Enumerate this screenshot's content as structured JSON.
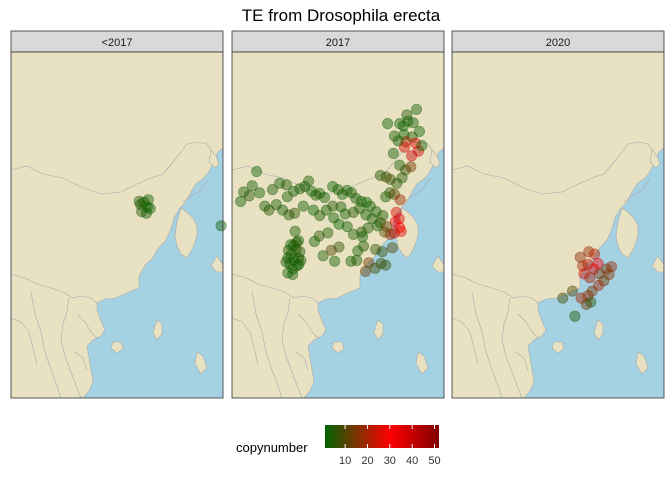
{
  "title": "TE from Drosophila erecta",
  "colors": {
    "ocean": "#a5d2e3",
    "land": "#e8e2c3",
    "border": "#a9a9a9",
    "strip_bg": "#d9d9d9",
    "panel_frame": "#333333",
    "scale": [
      "#006400",
      "#ff0000",
      "#800000"
    ]
  },
  "chart_data": {
    "type": "scatter",
    "facets": [
      "<2017",
      "2017",
      "2020"
    ],
    "xlim": [
      86,
      130
    ],
    "ylim": [
      10,
      54
    ],
    "color_scale": {
      "title": "copynumber",
      "breaks": [
        10,
        20,
        30,
        40,
        50
      ],
      "limits": [
        1,
        52
      ],
      "low": "#006400",
      "mid": "#ff0000",
      "high": "#800000",
      "midpoint": 30
    },
    "points": {
      "<2017": [
        [
          112.9,
          34.6,
          4
        ],
        [
          113.6,
          34.9,
          3
        ],
        [
          114.3,
          34.3,
          4
        ],
        [
          113.1,
          33.7,
          5
        ],
        [
          114.1,
          33.5,
          3
        ],
        [
          114.9,
          34.1,
          2
        ],
        [
          112.6,
          35.0,
          4
        ],
        [
          114.5,
          35.2,
          3
        ],
        [
          129.6,
          31.9,
          3
        ]
      ],
      "2017": [
        [
          118.3,
          44.9,
          2
        ],
        [
          122.3,
          46.0,
          5
        ],
        [
          124.3,
          46.7,
          3
        ],
        [
          123.6,
          45.0,
          3
        ],
        [
          121.7,
          43.5,
          2
        ],
        [
          123.4,
          43.2,
          5
        ],
        [
          122.1,
          42.6,
          20
        ],
        [
          124.1,
          42.4,
          34
        ],
        [
          124.7,
          41.4,
          38
        ],
        [
          123.3,
          40.8,
          40
        ],
        [
          121.8,
          41.9,
          26
        ],
        [
          119.5,
          41.1,
          3
        ],
        [
          120.5,
          42.7,
          3
        ],
        [
          119.7,
          43.3,
          4
        ],
        [
          120.8,
          44.9,
          3
        ],
        [
          121.6,
          44.6,
          2
        ],
        [
          122.5,
          45.2,
          3
        ],
        [
          124.9,
          43.9,
          2
        ],
        [
          125.4,
          42.1,
          3
        ],
        [
          123.1,
          39.4,
          15
        ],
        [
          122.0,
          39.0,
          8
        ],
        [
          120.8,
          39.6,
          4
        ],
        [
          121.3,
          38.0,
          5
        ],
        [
          120.2,
          37.3,
          5
        ],
        [
          118.9,
          37.8,
          7
        ],
        [
          118.0,
          38.1,
          8
        ],
        [
          116.8,
          38.3,
          5
        ],
        [
          118.8,
          36.1,
          6
        ],
        [
          117.9,
          35.6,
          4
        ],
        [
          119.7,
          35.9,
          10
        ],
        [
          120.9,
          35.2,
          18
        ],
        [
          120.1,
          33.6,
          26
        ],
        [
          120.7,
          32.8,
          36
        ],
        [
          119.9,
          32.4,
          33
        ],
        [
          120.8,
          31.7,
          30
        ],
        [
          121.1,
          31.2,
          34
        ],
        [
          119.7,
          31.0,
          24
        ],
        [
          118.9,
          30.8,
          20
        ],
        [
          117.7,
          31.1,
          11
        ],
        [
          116.8,
          32.3,
          6
        ],
        [
          117.3,
          33.2,
          5
        ],
        [
          115.9,
          33.7,
          3
        ],
        [
          114.7,
          34.4,
          3
        ],
        [
          113.9,
          34.9,
          2
        ],
        [
          112.8,
          35.0,
          3
        ],
        [
          111.7,
          35.4,
          3
        ],
        [
          110.8,
          36.1,
          4
        ],
        [
          109.9,
          36.4,
          3
        ],
        [
          108.9,
          35.9,
          3
        ],
        [
          108.0,
          36.5,
          4
        ],
        [
          106.9,
          36.9,
          2
        ],
        [
          105.2,
          35.5,
          3
        ],
        [
          104.2,
          36.0,
          3
        ],
        [
          103.4,
          35.8,
          4
        ],
        [
          102.5,
          36.3,
          3
        ],
        [
          101.9,
          37.6,
          4
        ],
        [
          101.1,
          36.9,
          3
        ],
        [
          100.1,
          36.6,
          4
        ],
        [
          98.8,
          36.3,
          3
        ],
        [
          97.5,
          35.6,
          4
        ],
        [
          97.3,
          37.1,
          5
        ],
        [
          95.9,
          37.3,
          3
        ],
        [
          94.4,
          36.5,
          4
        ],
        [
          91.1,
          38.8,
          2
        ],
        [
          90.2,
          37.0,
          3
        ],
        [
          88.4,
          36.2,
          4
        ],
        [
          87.8,
          35.0,
          3
        ],
        [
          89.6,
          35.7,
          5
        ],
        [
          91.7,
          36.1,
          3
        ],
        [
          92.8,
          34.4,
          4
        ],
        [
          93.7,
          33.9,
          5
        ],
        [
          95.2,
          34.6,
          4
        ],
        [
          96.5,
          33.9,
          3
        ],
        [
          97.8,
          33.3,
          5
        ],
        [
          99.0,
          33.5,
          6
        ],
        [
          100.8,
          34.4,
          3
        ],
        [
          102.9,
          33.9,
          2
        ],
        [
          104.2,
          33.2,
          4
        ],
        [
          105.6,
          33.9,
          3
        ],
        [
          106.9,
          34.4,
          5
        ],
        [
          108.6,
          34.3,
          4
        ],
        [
          109.5,
          33.4,
          3
        ],
        [
          111.2,
          33.6,
          5
        ],
        [
          112.5,
          34.1,
          4
        ],
        [
          113.8,
          33.3,
          3
        ],
        [
          115.1,
          32.8,
          4
        ],
        [
          116.2,
          31.9,
          3
        ],
        [
          114.2,
          31.6,
          4
        ],
        [
          112.9,
          31.1,
          5
        ],
        [
          111.2,
          30.8,
          4
        ],
        [
          109.9,
          31.8,
          3
        ],
        [
          108.2,
          32.1,
          2
        ],
        [
          107.1,
          32.9,
          3
        ],
        [
          105.9,
          31.0,
          4
        ],
        [
          104.1,
          30.6,
          5
        ],
        [
          103.1,
          29.9,
          3
        ],
        [
          99.1,
          31.2,
          4
        ],
        [
          99.8,
          30.0,
          3
        ],
        [
          98.8,
          29.4,
          2
        ],
        [
          99.3,
          28.9,
          4
        ],
        [
          98.3,
          28.3,
          3
        ],
        [
          98.8,
          27.6,
          4
        ],
        [
          99.8,
          27.8,
          3
        ],
        [
          100.1,
          28.6,
          5
        ],
        [
          98.0,
          27.1,
          2
        ],
        [
          98.6,
          26.4,
          3
        ],
        [
          99.5,
          26.8,
          4
        ],
        [
          98.6,
          25.7,
          3
        ],
        [
          99.9,
          27.0,
          2
        ],
        [
          97.6,
          25.9,
          3
        ],
        [
          97.2,
          27.3,
          4
        ],
        [
          98.2,
          29.5,
          3
        ],
        [
          97.7,
          28.8,
          4
        ],
        [
          99.4,
          29.8,
          5
        ],
        [
          100.3,
          27.5,
          4
        ],
        [
          97.6,
          27.8,
          3
        ],
        [
          104.9,
          28.1,
          4
        ],
        [
          107.3,
          27.4,
          3
        ],
        [
          108.2,
          29.2,
          6
        ],
        [
          106.6,
          28.8,
          10
        ],
        [
          112.1,
          28.7,
          3
        ],
        [
          111.9,
          27.5,
          4
        ],
        [
          110.7,
          27.4,
          3
        ],
        [
          113.3,
          29.3,
          5
        ],
        [
          113.1,
          30.5,
          3
        ],
        [
          117.2,
          28.6,
          8
        ],
        [
          115.8,
          28.9,
          6
        ],
        [
          116.9,
          27.1,
          7
        ],
        [
          114.4,
          27.2,
          14
        ],
        [
          113.7,
          26.1,
          12
        ],
        [
          115.7,
          26.5,
          9
        ],
        [
          117.9,
          26.9,
          7
        ],
        [
          119.3,
          29.1,
          10
        ],
        [
          118.1,
          31.8,
          12
        ]
      ],
      "2020": [
        [
          114.4,
          28.6,
          18
        ],
        [
          115.6,
          28.3,
          22
        ],
        [
          116.3,
          27.1,
          30
        ],
        [
          115.4,
          26.4,
          34
        ],
        [
          114.2,
          27.0,
          24
        ],
        [
          113.1,
          26.8,
          20
        ],
        [
          112.6,
          27.9,
          17
        ],
        [
          113.4,
          25.8,
          26
        ],
        [
          114.6,
          25.3,
          20
        ],
        [
          116.6,
          25.8,
          16
        ],
        [
          118.0,
          26.4,
          14
        ],
        [
          119.1,
          26.7,
          18
        ],
        [
          118.6,
          25.7,
          16
        ],
        [
          117.5,
          24.9,
          14
        ],
        [
          116.4,
          24.3,
          20
        ],
        [
          115.1,
          23.6,
          15
        ],
        [
          114.2,
          23.0,
          17
        ],
        [
          112.8,
          22.7,
          19
        ],
        [
          113.9,
          21.9,
          14
        ],
        [
          111.0,
          23.6,
          11
        ],
        [
          109.0,
          22.7,
          9
        ],
        [
          111.5,
          20.4,
          5
        ],
        [
          114.8,
          22.2,
          6
        ]
      ]
    }
  }
}
